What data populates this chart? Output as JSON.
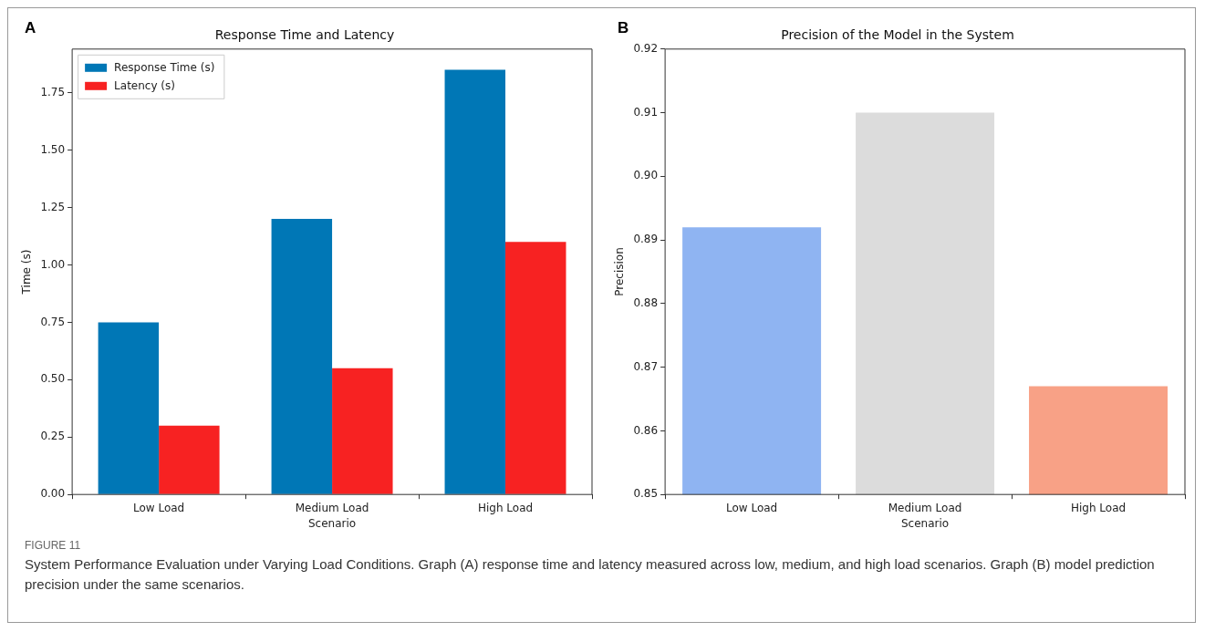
{
  "chart_data": [
    {
      "type": "bar",
      "title": "Response Time and Latency",
      "xlabel": "Scenario",
      "ylabel": "Time (s)",
      "annotations": [
        "A",
        "FIGURE 11",
        "System Performance Evaluation under Varying Load Conditions. Graph (A) response time and latency measured across low, medium, and high load scenarios. Graph (B) model prediction precision under the same scenarios."
      ],
      "categories": [
        "Low Load",
        "Medium Load",
        "High Load"
      ],
      "series": [
        {
          "name": "Response Time (s)",
          "color": "#0077b6",
          "values": [
            0.75,
            1.2,
            1.85
          ]
        },
        {
          "name": "Latency (s)",
          "color": "#f72222",
          "values": [
            0.3,
            0.55,
            1.1
          ]
        }
      ],
      "ylim": [
        0,
        1.94
      ],
      "yticks": [
        {
          "value": 0,
          "label": "0.00"
        },
        {
          "value": 0.25,
          "label": "0.25"
        },
        {
          "value": 0.5,
          "label": "0.50"
        },
        {
          "value": 0.75,
          "label": "0.75"
        },
        {
          "value": 1,
          "label": "1.00"
        },
        {
          "value": 1.25,
          "label": "1.25"
        },
        {
          "value": 1.5,
          "label": "1.50"
        },
        {
          "value": 1.75,
          "label": "1.75"
        }
      ],
      "legend": "top left"
    },
    {
      "type": "bar",
      "title": "Precision of the Model in the System",
      "xlabel": "Scenario",
      "ylabel": "Precision",
      "annotations": [
        "B"
      ],
      "categories": [
        "Low Load",
        "Medium Load",
        "High Load"
      ],
      "values": [
        0.892,
        0.91,
        0.867
      ],
      "colors": [
        "#8fb4f2",
        "#dcdcdc",
        "#f8a186"
      ],
      "ylim": [
        0.85,
        0.92
      ],
      "yticks": [
        0.85,
        0.86,
        0.87,
        0.88,
        0.89,
        {
          "value": 0.9,
          "label": "0.90"
        },
        0.91,
        0.92
      ]
    }
  ]
}
